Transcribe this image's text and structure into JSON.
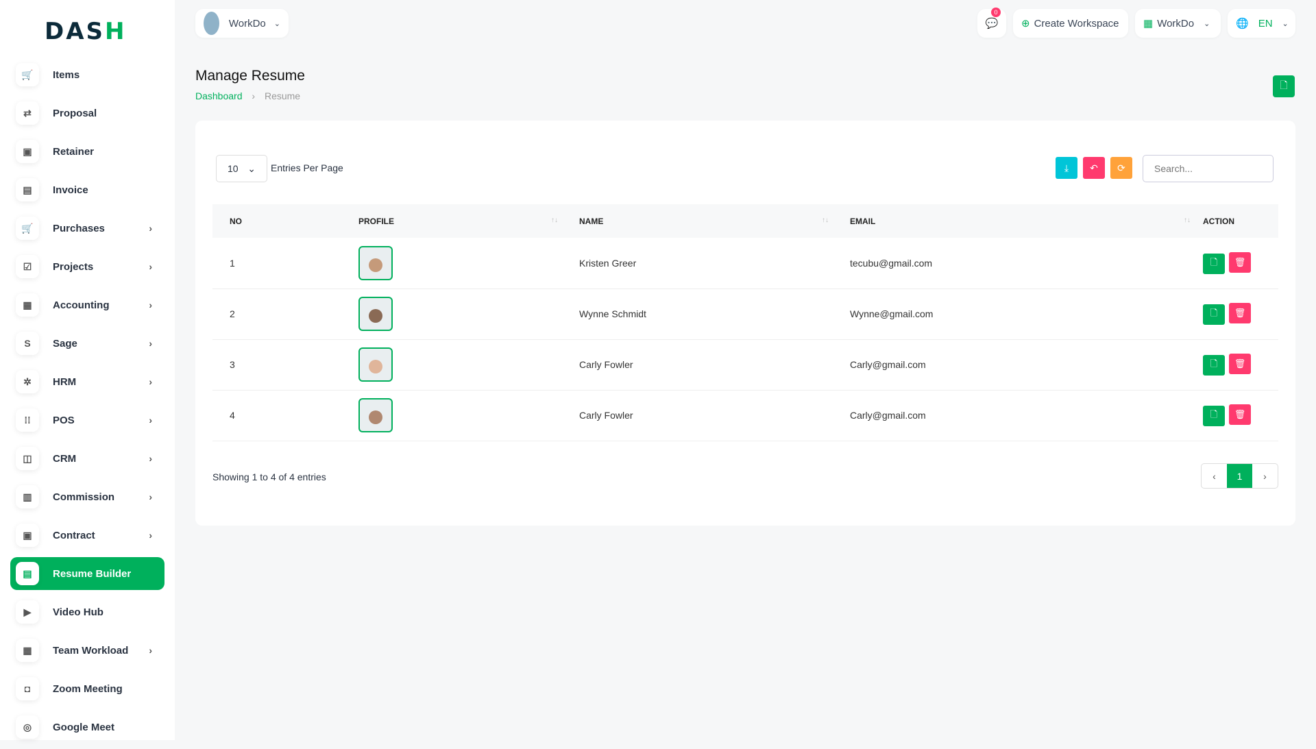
{
  "brand": {
    "logo_a": "DAS",
    "logo_b": "H"
  },
  "sidebar": {
    "items": [
      {
        "label": "Items",
        "icon": "cart-icon",
        "glyph": "🛒",
        "chev": false
      },
      {
        "label": "Proposal",
        "icon": "swap-icon",
        "glyph": "⇄",
        "chev": false
      },
      {
        "label": "Retainer",
        "icon": "save-icon",
        "glyph": "▣",
        "chev": false
      },
      {
        "label": "Invoice",
        "icon": "file-icon",
        "glyph": "▤",
        "chev": false
      },
      {
        "label": "Purchases",
        "icon": "cart-icon",
        "glyph": "🛒",
        "chev": true
      },
      {
        "label": "Projects",
        "icon": "check-square-icon",
        "glyph": "☑",
        "chev": true
      },
      {
        "label": "Accounting",
        "icon": "grid-icon",
        "glyph": "▦",
        "chev": true
      },
      {
        "label": "Sage",
        "icon": "s-letter-icon",
        "glyph": "S",
        "chev": true
      },
      {
        "label": "HRM",
        "icon": "settings-icon",
        "glyph": "✲",
        "chev": true
      },
      {
        "label": "POS",
        "icon": "dots-grid-icon",
        "glyph": "⁞⁞",
        "chev": true
      },
      {
        "label": "CRM",
        "icon": "layers-icon",
        "glyph": "◫",
        "chev": true
      },
      {
        "label": "Commission",
        "icon": "calculator-icon",
        "glyph": "▥",
        "chev": true
      },
      {
        "label": "Contract",
        "icon": "save-icon",
        "glyph": "▣",
        "chev": true
      },
      {
        "label": "Resume Builder",
        "icon": "file-text-icon",
        "glyph": "▤",
        "chev": false,
        "active": true
      },
      {
        "label": "Video Hub",
        "icon": "video-icon",
        "glyph": "▶",
        "chev": false
      },
      {
        "label": "Team Workload",
        "icon": "calendar-icon",
        "glyph": "▦",
        "chev": true
      },
      {
        "label": "Zoom Meeting",
        "icon": "camera-icon",
        "glyph": "◘",
        "chev": false
      },
      {
        "label": "Google Meet",
        "icon": "pin-icon",
        "glyph": "◎",
        "chev": false
      }
    ]
  },
  "topbar": {
    "workspace": "WorkDo",
    "messages_count": "0",
    "create_workspace": "Create Workspace",
    "workspace_menu": "WorkDo",
    "language": "EN"
  },
  "page": {
    "title": "Manage Resume",
    "breadcrumb": [
      "Dashboard",
      "Resume"
    ]
  },
  "table_controls": {
    "entries": "10",
    "entries_label": "Entries Per Page",
    "search_placeholder": "Search..."
  },
  "table": {
    "headers": [
      "NO",
      "PROFILE",
      "NAME",
      "EMAIL",
      "ACTION"
    ],
    "rows": [
      {
        "no": "1",
        "name": "Kristen Greer",
        "email": "tecubu@gmail.com"
      },
      {
        "no": "2",
        "name": "Wynne Schmidt",
        "email": "Wynne@gmail.com"
      },
      {
        "no": "3",
        "name": "Carly Fowler",
        "email": "Carly@gmail.com"
      },
      {
        "no": "4",
        "name": "Carly Fowler",
        "email": "Carly@gmail.com"
      }
    ]
  },
  "footer": {
    "info": "Showing 1 to 4 of 4 entries",
    "page": "1",
    "prev": "‹",
    "next": "›"
  },
  "colors": {
    "accent": "#00b05c",
    "danger": "#ff3a6e",
    "info": "#00c5d8",
    "warning": "#ffa23a"
  }
}
